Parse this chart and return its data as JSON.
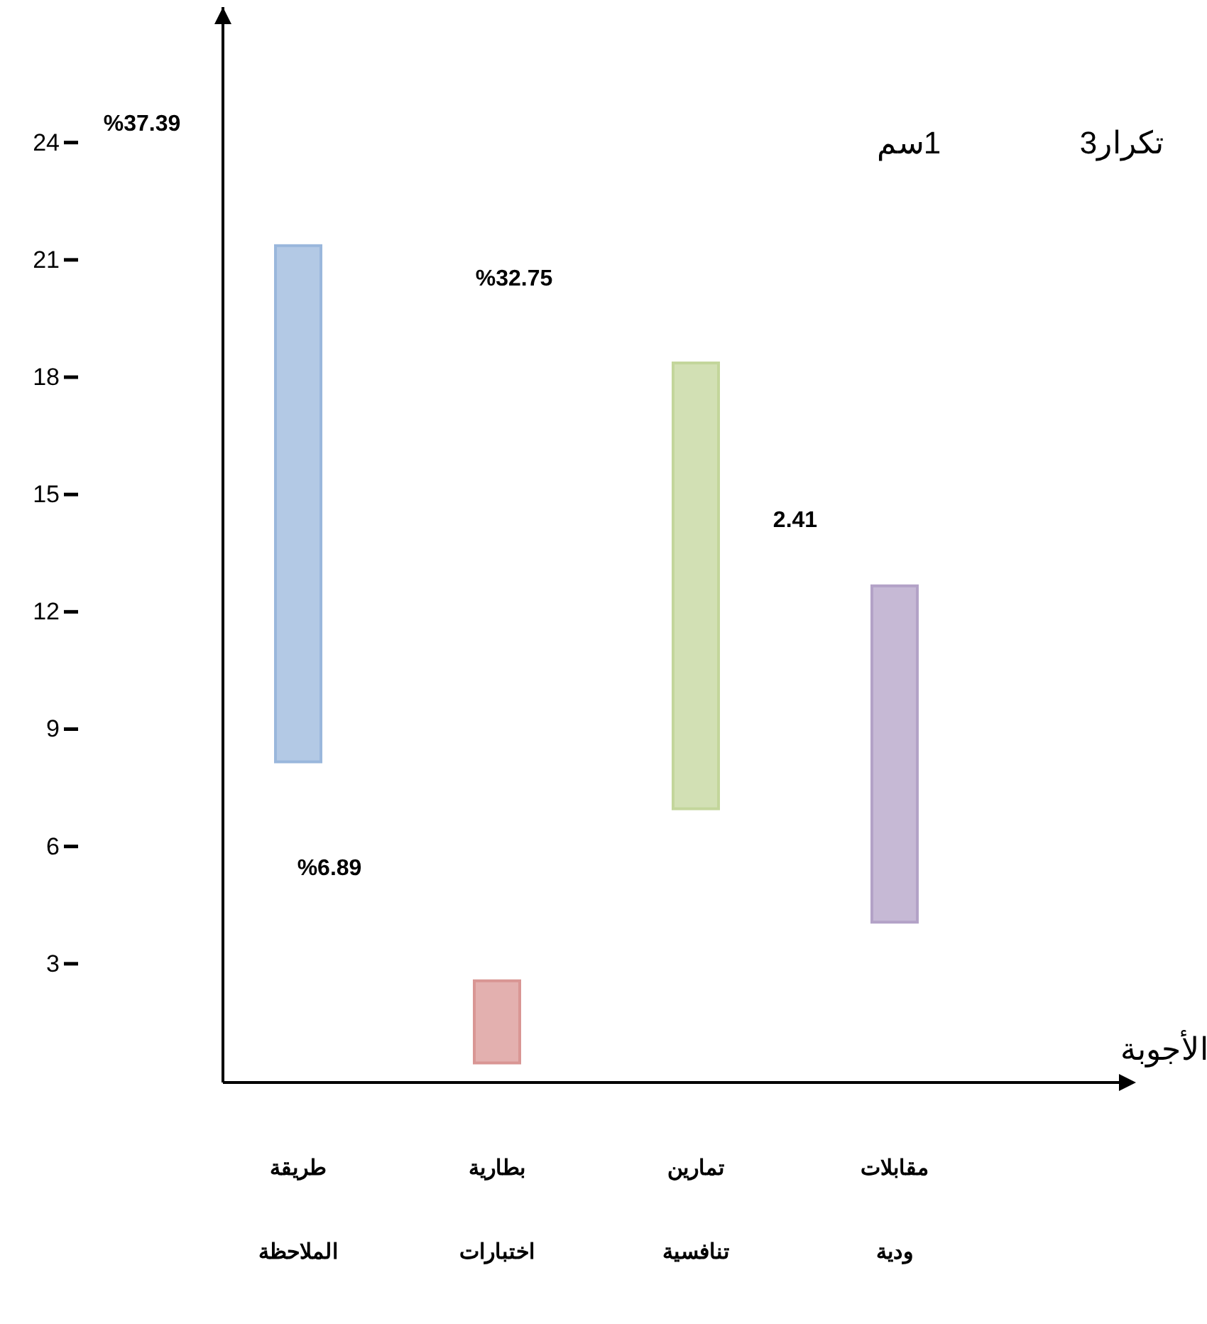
{
  "chart_data": {
    "type": "bar",
    "xlabel": "الأجوبة",
    "annotations": [
      "تكرار3",
      "1سم",
      "%37.39",
      "%32.75",
      "2.41",
      "%6.89"
    ],
    "categories": [
      "طريقة الملاحظة",
      "بطارية اختبارات",
      "تمارين تنافسية",
      "مقابلات ودية"
    ],
    "base": [
      8.2,
      0.5,
      7.0,
      4.1
    ],
    "values": [
      13.2,
      2.1,
      11.4,
      8.6
    ],
    "colors": [
      "#9ab7dc",
      "#d99694",
      "#c3d69b",
      "#b3a2c7"
    ],
    "ylim": [
      0,
      27.5
    ],
    "yticks": [
      3,
      6,
      9,
      12,
      15,
      18,
      21,
      24
    ]
  }
}
